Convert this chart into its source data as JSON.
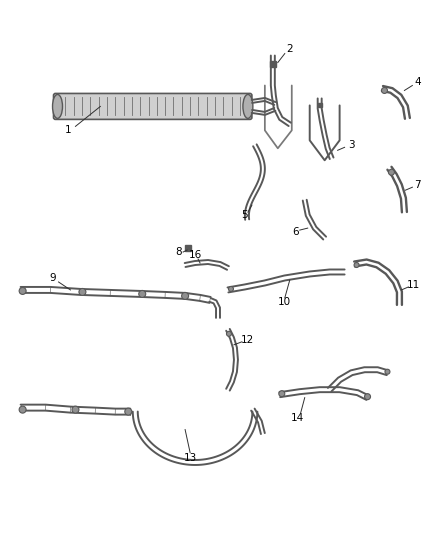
{
  "background_color": "#ffffff",
  "line_color": "#707070",
  "label_color": "#000000",
  "dark_line": "#585858",
  "mid_gray": "#909090",
  "light_gray": "#c8c8c8",
  "figsize": [
    4.38,
    5.33
  ],
  "dpi": 100,
  "label_fontsize": 7.5
}
